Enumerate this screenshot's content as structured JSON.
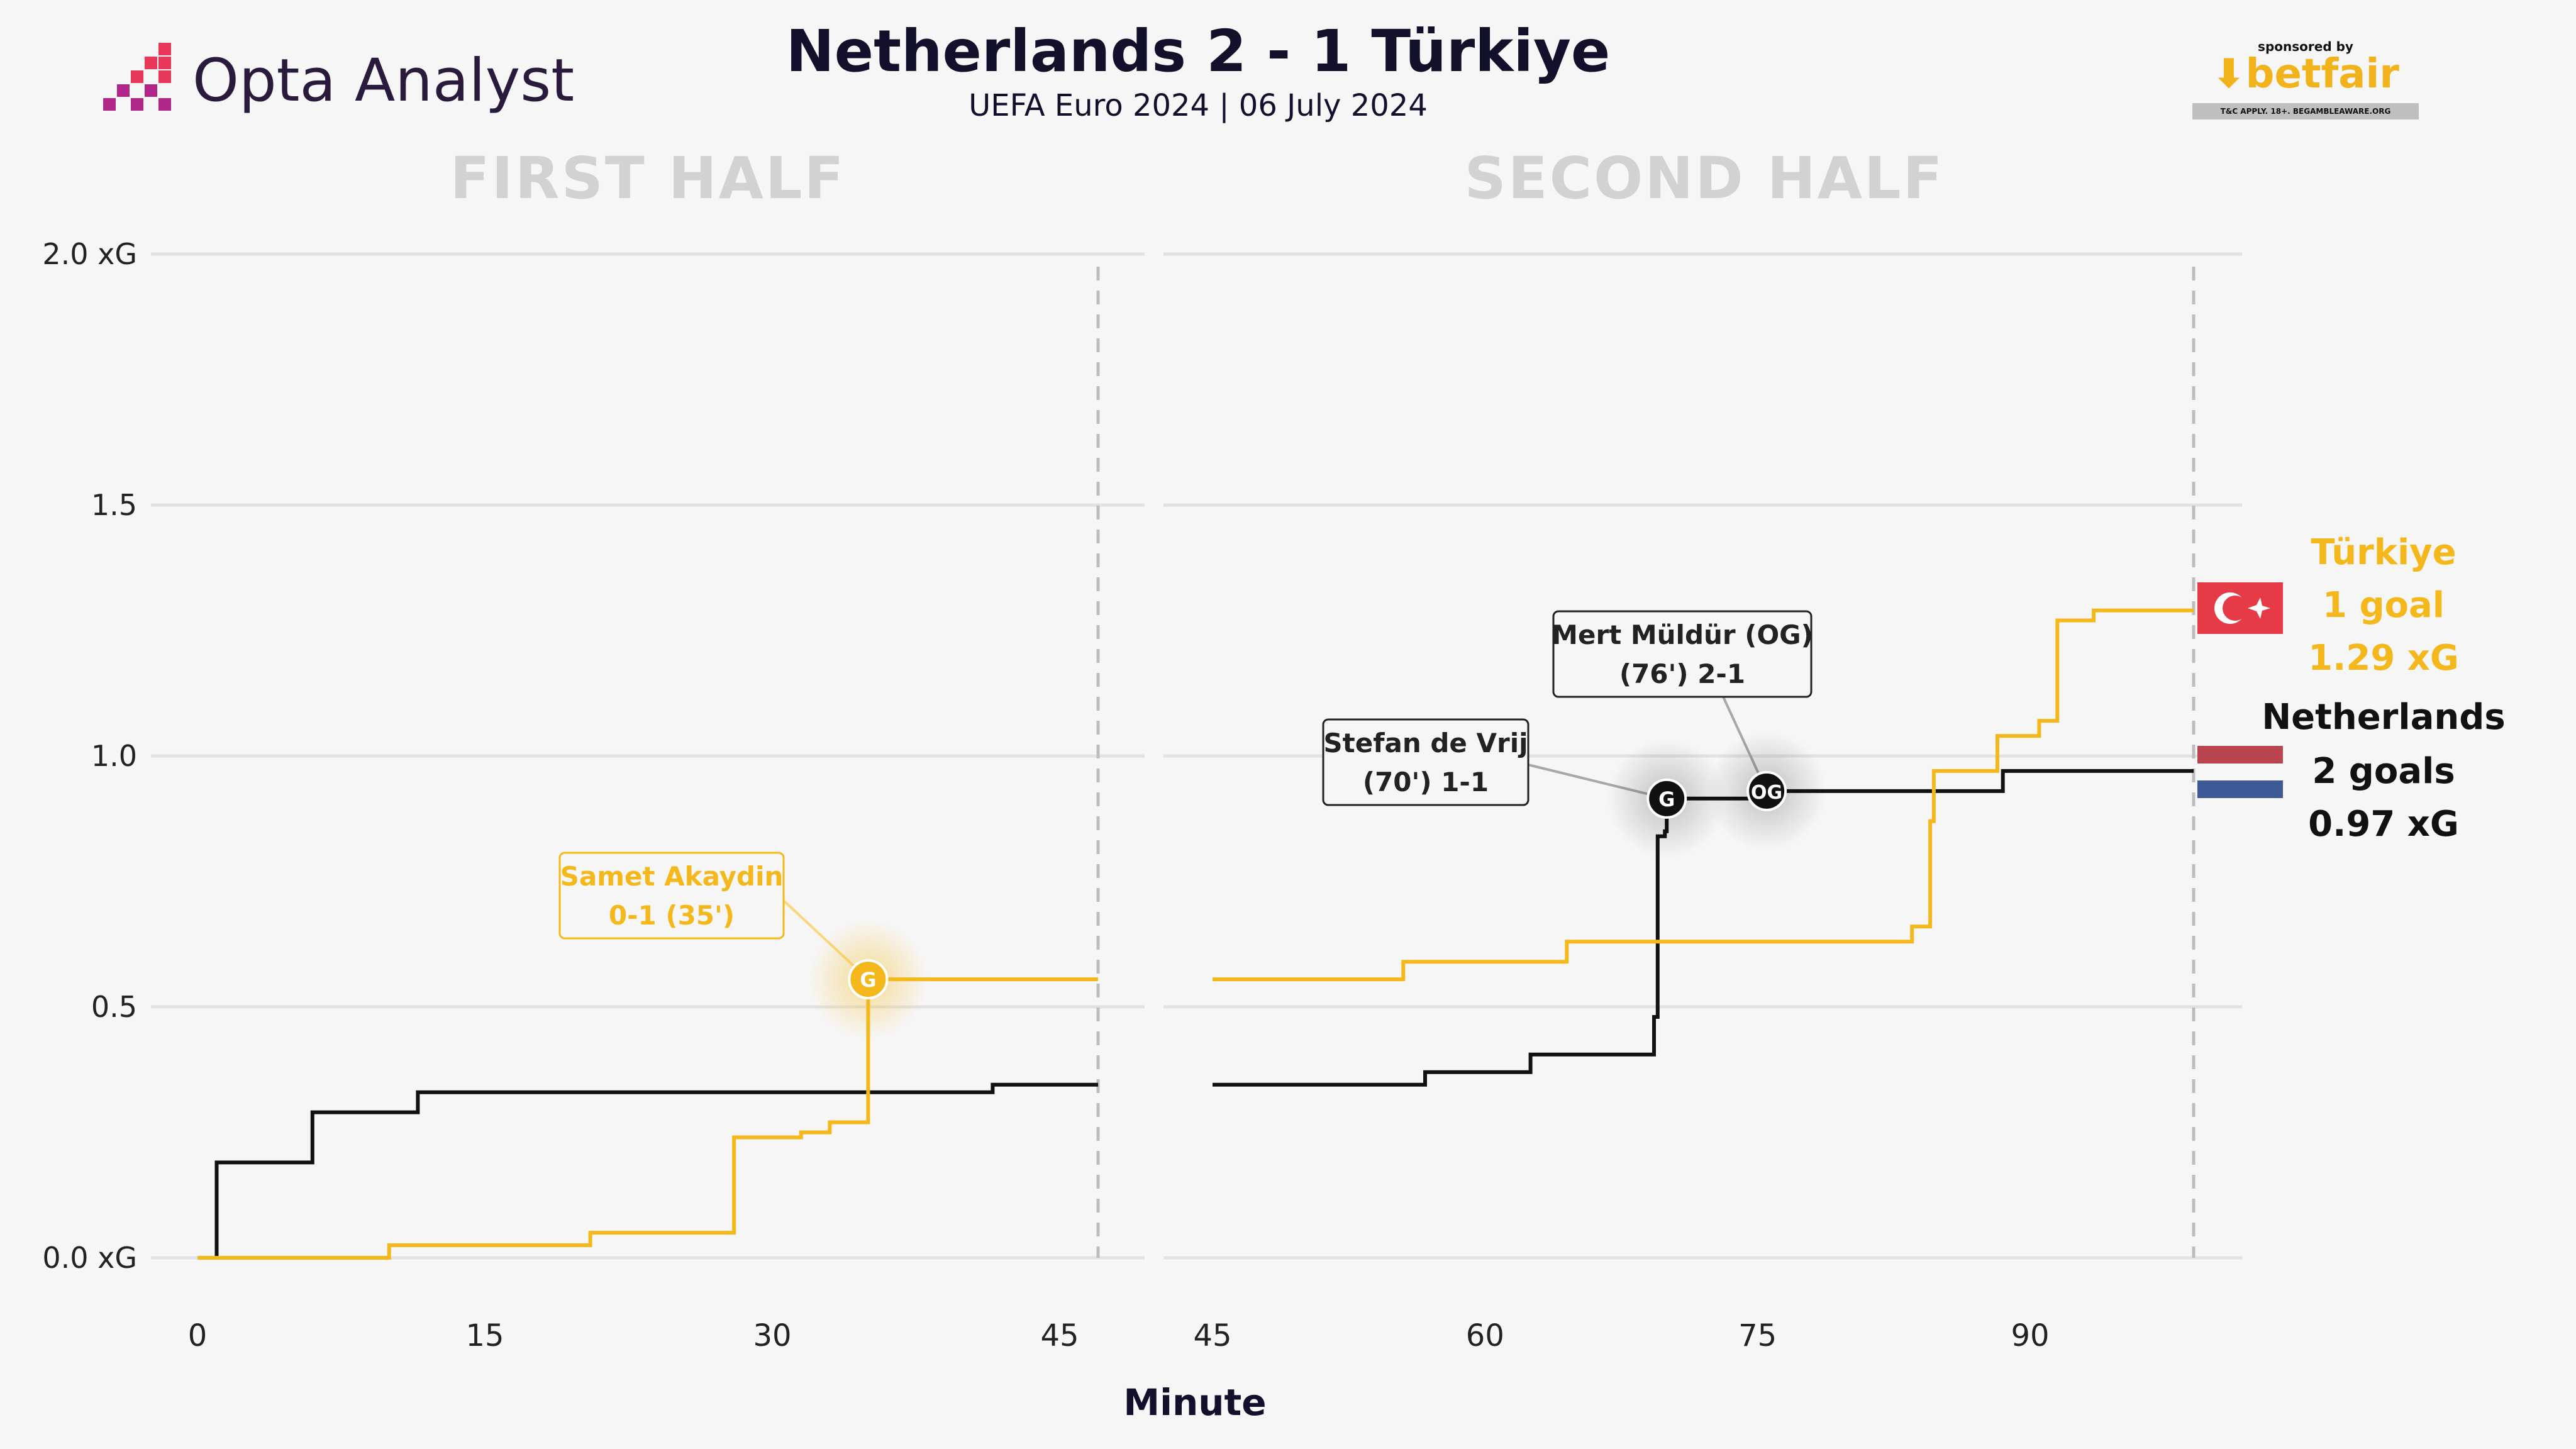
{
  "header": {
    "title": "Netherlands 2 - 1 Türkiye",
    "subtitle": "UEFA Euro 2024 | 06 July 2024",
    "logo": "Opta Analyst",
    "sponsor_small": "sponsored by",
    "sponsor_brand": "betfair",
    "sponsor_tc": "T&C APPLY. 18+. BEGAMBLEAWARE.ORG"
  },
  "colors": {
    "netherlands": "#111111",
    "turkiye": "#f4b81c",
    "grid": "#e2e2e2",
    "halftitle": "#d2d2d2"
  },
  "chart_data": {
    "type": "line",
    "step": true,
    "xlabel": "Minute",
    "ylim": [
      0,
      2.0
    ],
    "y_ticks": [
      "0.0 xG",
      "0.5",
      "1.0",
      "1.5",
      "2.0 xG"
    ],
    "y_tick_values": [
      0,
      0.5,
      1.0,
      1.5,
      2.0
    ],
    "panels": [
      {
        "name": "first_half",
        "title": "FIRST HALF",
        "xlim": [
          0,
          47
        ],
        "x_ticks": [
          0,
          15,
          30,
          45
        ],
        "end_marker": 47,
        "series": [
          {
            "name": "Netherlands",
            "points": [
              [
                0,
                0
              ],
              [
                1,
                0
              ],
              [
                1,
                0.19
              ],
              [
                6,
                0.19
              ],
              [
                6,
                0.29
              ],
              [
                11.5,
                0.29
              ],
              [
                11.5,
                0.33
              ],
              [
                41.5,
                0.33
              ],
              [
                41.5,
                0.345
              ],
              [
                47,
                0.345
              ]
            ]
          },
          {
            "name": "Türkiye",
            "points": [
              [
                0,
                0
              ],
              [
                10,
                0
              ],
              [
                10,
                0.025
              ],
              [
                20.5,
                0.025
              ],
              [
                20.5,
                0.05
              ],
              [
                28,
                0.05
              ],
              [
                28,
                0.24
              ],
              [
                31.5,
                0.24
              ],
              [
                31.5,
                0.25
              ],
              [
                33,
                0.25
              ],
              [
                33,
                0.27
              ],
              [
                35,
                0.27
              ],
              [
                35,
                0.555
              ],
              [
                47,
                0.555
              ]
            ]
          }
        ],
        "events": [
          {
            "team": "Türkiye",
            "minute": 35,
            "xg": 0.555,
            "marker": "G",
            "label_line1": "Samet Akaydin",
            "label_line2": "0-1 (35')"
          }
        ]
      },
      {
        "name": "second_half",
        "title": "SECOND HALF",
        "xlim": [
          45,
          99
        ],
        "x_ticks": [
          45,
          60,
          75,
          90
        ],
        "end_marker": 99,
        "series": [
          {
            "name": "Netherlands",
            "points": [
              [
                45,
                0.345
              ],
              [
                56.7,
                0.345
              ],
              [
                56.7,
                0.37
              ],
              [
                62.5,
                0.37
              ],
              [
                62.5,
                0.405
              ],
              [
                69.3,
                0.405
              ],
              [
                69.3,
                0.48
              ],
              [
                69.5,
                0.48
              ],
              [
                69.5,
                0.84
              ],
              [
                69.9,
                0.84
              ],
              [
                69.9,
                0.85
              ],
              [
                70,
                0.85
              ],
              [
                70,
                0.915
              ],
              [
                75.5,
                0.915
              ],
              [
                75.5,
                0.93
              ],
              [
                88.5,
                0.93
              ],
              [
                88.5,
                0.97
              ],
              [
                99,
                0.97
              ]
            ]
          },
          {
            "name": "Türkiye",
            "points": [
              [
                45,
                0.555
              ],
              [
                55.5,
                0.555
              ],
              [
                55.5,
                0.59
              ],
              [
                64.5,
                0.59
              ],
              [
                64.5,
                0.63
              ],
              [
                83.5,
                0.63
              ],
              [
                83.5,
                0.66
              ],
              [
                84.5,
                0.66
              ],
              [
                84.5,
                0.87
              ],
              [
                84.7,
                0.87
              ],
              [
                84.7,
                0.97
              ],
              [
                88.2,
                0.97
              ],
              [
                88.2,
                1.04
              ],
              [
                90.5,
                1.04
              ],
              [
                90.5,
                1.07
              ],
              [
                91.5,
                1.07
              ],
              [
                91.5,
                1.27
              ],
              [
                93.5,
                1.27
              ],
              [
                93.5,
                1.29
              ],
              [
                99,
                1.29
              ]
            ]
          }
        ],
        "events": [
          {
            "team": "Netherlands",
            "minute": 70,
            "xg": 0.915,
            "marker": "G",
            "label_line1": "Stefan de Vrij",
            "label_line2": "(70') 1-1"
          },
          {
            "team": "Netherlands",
            "minute": 75.5,
            "xg": 0.93,
            "marker": "OG",
            "label_line1": "Mert Müldür (OG)",
            "label_line2": "(76') 2-1"
          }
        ]
      }
    ],
    "summary": [
      {
        "team": "Türkiye",
        "goals": "1 goal",
        "xg": "1.29 xG"
      },
      {
        "team": "Netherlands",
        "goals": "2 goals",
        "xg": "0.97 xG"
      }
    ]
  }
}
